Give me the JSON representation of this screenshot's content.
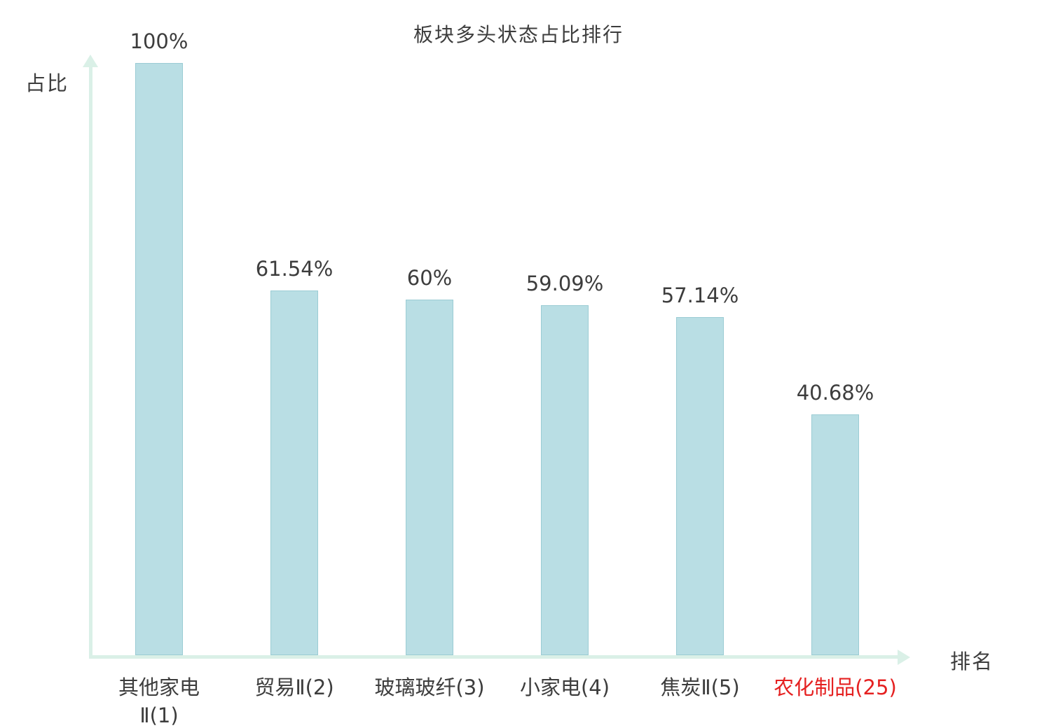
{
  "chart_data": {
    "type": "bar",
    "title": "板块多头状态占比排行",
    "ylabel": "占比",
    "xlabel": "排名",
    "categories": [
      "其他家电Ⅱ(1)",
      "贸易Ⅱ(2)",
      "玻璃玻纤(3)",
      "小家电(4)",
      "焦炭Ⅱ(5)",
      "农化制品(25)"
    ],
    "category_lines": [
      [
        "其他家电",
        "Ⅱ(1)"
      ],
      [
        "贸易Ⅱ(2)"
      ],
      [
        "玻璃玻纤(3)"
      ],
      [
        "小家电(4)"
      ],
      [
        "焦炭Ⅱ(5)"
      ],
      [
        "农化制品(25)"
      ]
    ],
    "values": [
      100,
      61.54,
      60,
      59.09,
      57.14,
      40.68
    ],
    "value_labels": [
      "100%",
      "61.54%",
      "60%",
      "59.09%",
      "57.14%",
      "40.68%"
    ],
    "highlight_index": 5,
    "ylim": [
      0,
      100
    ],
    "grid": false,
    "legend": "none",
    "colors": {
      "bar_fill": "#b9dee4",
      "bar_border": "#9bccd4",
      "axis": "#daf0e7",
      "text": "#3d3d3d",
      "highlight_text": "#e52121"
    }
  }
}
